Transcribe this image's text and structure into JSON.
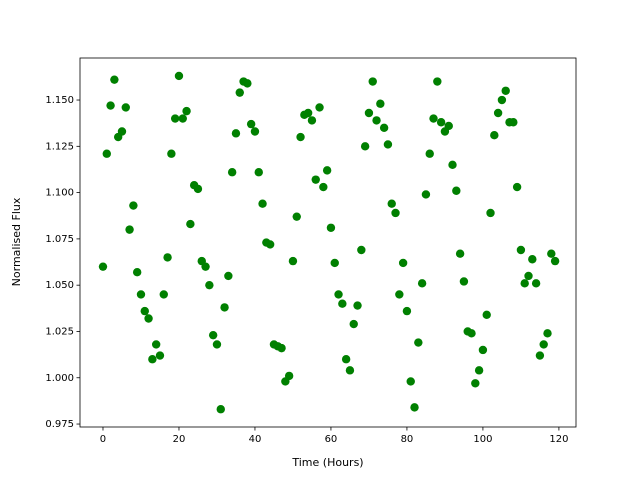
{
  "chart_data": {
    "type": "scatter",
    "xlabel": "Time (Hours)",
    "ylabel": "Normalised Flux",
    "color": "#008000",
    "x": [
      0,
      1,
      2,
      3,
      4,
      5,
      6,
      7,
      8,
      9,
      10,
      11,
      12,
      13,
      14,
      15,
      16,
      17,
      18,
      19,
      20,
      21,
      22,
      23,
      24,
      25,
      26,
      27,
      28,
      29,
      30,
      31,
      32,
      33,
      34,
      35,
      36,
      37,
      38,
      39,
      40,
      41,
      42,
      43,
      44,
      45,
      46,
      47,
      48,
      49,
      50,
      51,
      52,
      53,
      54,
      55,
      56,
      57,
      58,
      59,
      60,
      61,
      62,
      63,
      64,
      65,
      66,
      67,
      68,
      69,
      70,
      71,
      72,
      73,
      74,
      75,
      76,
      77,
      78,
      79,
      80,
      81,
      82,
      83,
      84,
      85,
      86,
      87,
      88,
      89,
      90,
      91,
      92,
      93,
      94,
      95,
      96,
      97,
      98,
      99,
      100,
      101,
      102,
      103,
      104,
      105,
      106,
      107,
      108,
      109,
      110,
      111,
      112,
      113,
      114,
      115,
      116,
      117,
      118,
      119
    ],
    "values": [
      1.06,
      1.121,
      1.147,
      1.161,
      1.13,
      1.133,
      1.146,
      1.08,
      1.093,
      1.057,
      1.045,
      1.036,
      1.032,
      1.01,
      1.018,
      1.012,
      1.045,
      1.065,
      1.121,
      1.14,
      1.163,
      1.14,
      1.144,
      1.083,
      1.104,
      1.102,
      1.063,
      1.06,
      1.05,
      1.023,
      1.018,
      0.983,
      1.038,
      1.055,
      1.111,
      1.132,
      1.154,
      1.16,
      1.159,
      1.137,
      1.133,
      1.111,
      1.094,
      1.073,
      1.072,
      1.018,
      1.017,
      1.016,
      0.998,
      1.001,
      1.063,
      1.087,
      1.13,
      1.142,
      1.143,
      1.139,
      1.107,
      1.146,
      1.103,
      1.112,
      1.081,
      1.062,
      1.045,
      1.04,
      1.01,
      1.004,
      1.029,
      1.039,
      1.069,
      1.125,
      1.143,
      1.16,
      1.139,
      1.148,
      1.135,
      1.126,
      1.094,
      1.089,
      1.045,
      1.062,
      1.036,
      0.998,
      0.984,
      1.019,
      1.051,
      1.099,
      1.121,
      1.14,
      1.16,
      1.138,
      1.133,
      1.136,
      1.115,
      1.101,
      1.067,
      1.052,
      1.025,
      1.024,
      0.997,
      1.004,
      1.015,
      1.034,
      1.089,
      1.131,
      1.143,
      1.15,
      1.155,
      1.138,
      1.138,
      1.103,
      1.069,
      1.051,
      1.055,
      1.064,
      1.051,
      1.012,
      1.018,
      1.024,
      1.067,
      1.063
    ],
    "xlim": [
      -6.05,
      124.5
    ],
    "ylim": [
      0.9734,
      1.1727
    ],
    "xticks": [
      0,
      20,
      40,
      60,
      80,
      100,
      120
    ],
    "yticks": [
      {
        "value": 0.975,
        "label": "0.975"
      },
      {
        "value": 1.0,
        "label": "1.000"
      },
      {
        "value": 1.025,
        "label": "1.025"
      },
      {
        "value": 1.05,
        "label": "1.050"
      },
      {
        "value": 1.075,
        "label": "1.075"
      },
      {
        "value": 1.1,
        "label": "1.100"
      },
      {
        "value": 1.125,
        "label": "1.125"
      },
      {
        "value": 1.15,
        "label": "1.150"
      }
    ]
  }
}
